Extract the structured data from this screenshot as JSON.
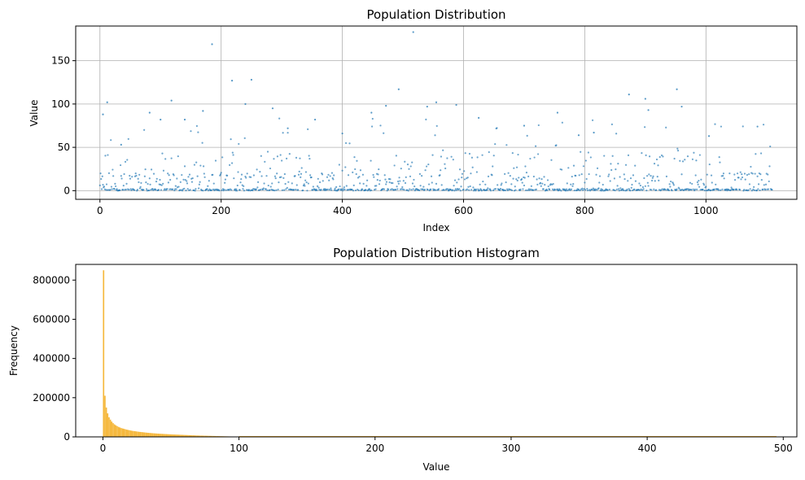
{
  "chart_data": [
    {
      "type": "scatter",
      "title": "Population Distribution",
      "xlabel": "Index",
      "ylabel": "Value",
      "xlim": [
        -40,
        1150
      ],
      "ylim": [
        -10,
        190
      ],
      "xticks": [
        0,
        200,
        400,
        600,
        800,
        1000
      ],
      "yticks": [
        0,
        50,
        100,
        150
      ],
      "grid": true,
      "point_color": "#1f77b4",
      "series": [
        {
          "n_points": 1110,
          "highlights": [
            {
              "x": 5,
              "y": 88
            },
            {
              "x": 12,
              "y": 102
            },
            {
              "x": 35,
              "y": 53
            },
            {
              "x": 82,
              "y": 90
            },
            {
              "x": 100,
              "y": 82
            },
            {
              "x": 118,
              "y": 104
            },
            {
              "x": 140,
              "y": 82
            },
            {
              "x": 170,
              "y": 92
            },
            {
              "x": 185,
              "y": 169
            },
            {
              "x": 218,
              "y": 127
            },
            {
              "x": 240,
              "y": 100
            },
            {
              "x": 250,
              "y": 128
            },
            {
              "x": 285,
              "y": 95
            },
            {
              "x": 310,
              "y": 72
            },
            {
              "x": 355,
              "y": 82
            },
            {
              "x": 400,
              "y": 66
            },
            {
              "x": 448,
              "y": 90
            },
            {
              "x": 472,
              "y": 98
            },
            {
              "x": 493,
              "y": 117
            },
            {
              "x": 517,
              "y": 183
            },
            {
              "x": 540,
              "y": 97
            },
            {
              "x": 555,
              "y": 102
            },
            {
              "x": 588,
              "y": 99
            },
            {
              "x": 625,
              "y": 84
            },
            {
              "x": 700,
              "y": 75
            },
            {
              "x": 755,
              "y": 90
            },
            {
              "x": 790,
              "y": 64
            },
            {
              "x": 815,
              "y": 67
            },
            {
              "x": 873,
              "y": 111
            },
            {
              "x": 900,
              "y": 106
            },
            {
              "x": 905,
              "y": 93
            },
            {
              "x": 952,
              "y": 117
            },
            {
              "x": 960,
              "y": 97
            },
            {
              "x": 1005,
              "y": 63
            },
            {
              "x": 1085,
              "y": 74
            }
          ]
        }
      ]
    },
    {
      "type": "bar",
      "title": "Population Distribution Histogram",
      "xlabel": "Value",
      "ylabel": "Frequency",
      "xlim": [
        -20,
        510
      ],
      "ylim": [
        0,
        880000
      ],
      "xticks": [
        0,
        100,
        200,
        300,
        400,
        500
      ],
      "yticks": [
        0,
        200000,
        400000,
        600000,
        800000
      ],
      "bar_color": "#f5b83d",
      "bin_width": 1,
      "values": [
        850000,
        210000,
        150000,
        120000,
        100000,
        88000,
        78000,
        70000,
        64000,
        59000,
        55000,
        51000,
        48000,
        45000,
        43000,
        41000,
        39000,
        37000,
        35500,
        34000,
        32500,
        31000,
        30000,
        29000,
        28000,
        27000,
        26000,
        25200,
        24400,
        23600,
        22800,
        22000,
        21300,
        20600,
        20000,
        19400,
        18800,
        18200,
        17700,
        17200,
        16700,
        16200,
        15800,
        15400,
        15000,
        14600,
        14200,
        13800,
        13400,
        13000,
        12700,
        12400,
        12100,
        11800,
        11500,
        11200,
        10900,
        10600,
        10300,
        10000,
        9700,
        9400,
        9100,
        8800,
        8500,
        8200,
        7900,
        7600,
        7300,
        7000,
        6800,
        6600,
        6400,
        6200,
        6000,
        5800,
        5600,
        5400,
        5200,
        5000,
        4800,
        4600,
        4400,
        4200,
        4000,
        3800,
        3600,
        3400,
        3200,
        3000,
        2800,
        2600,
        2400,
        2200,
        2000,
        1200,
        600,
        300,
        150,
        80
      ]
    }
  ]
}
